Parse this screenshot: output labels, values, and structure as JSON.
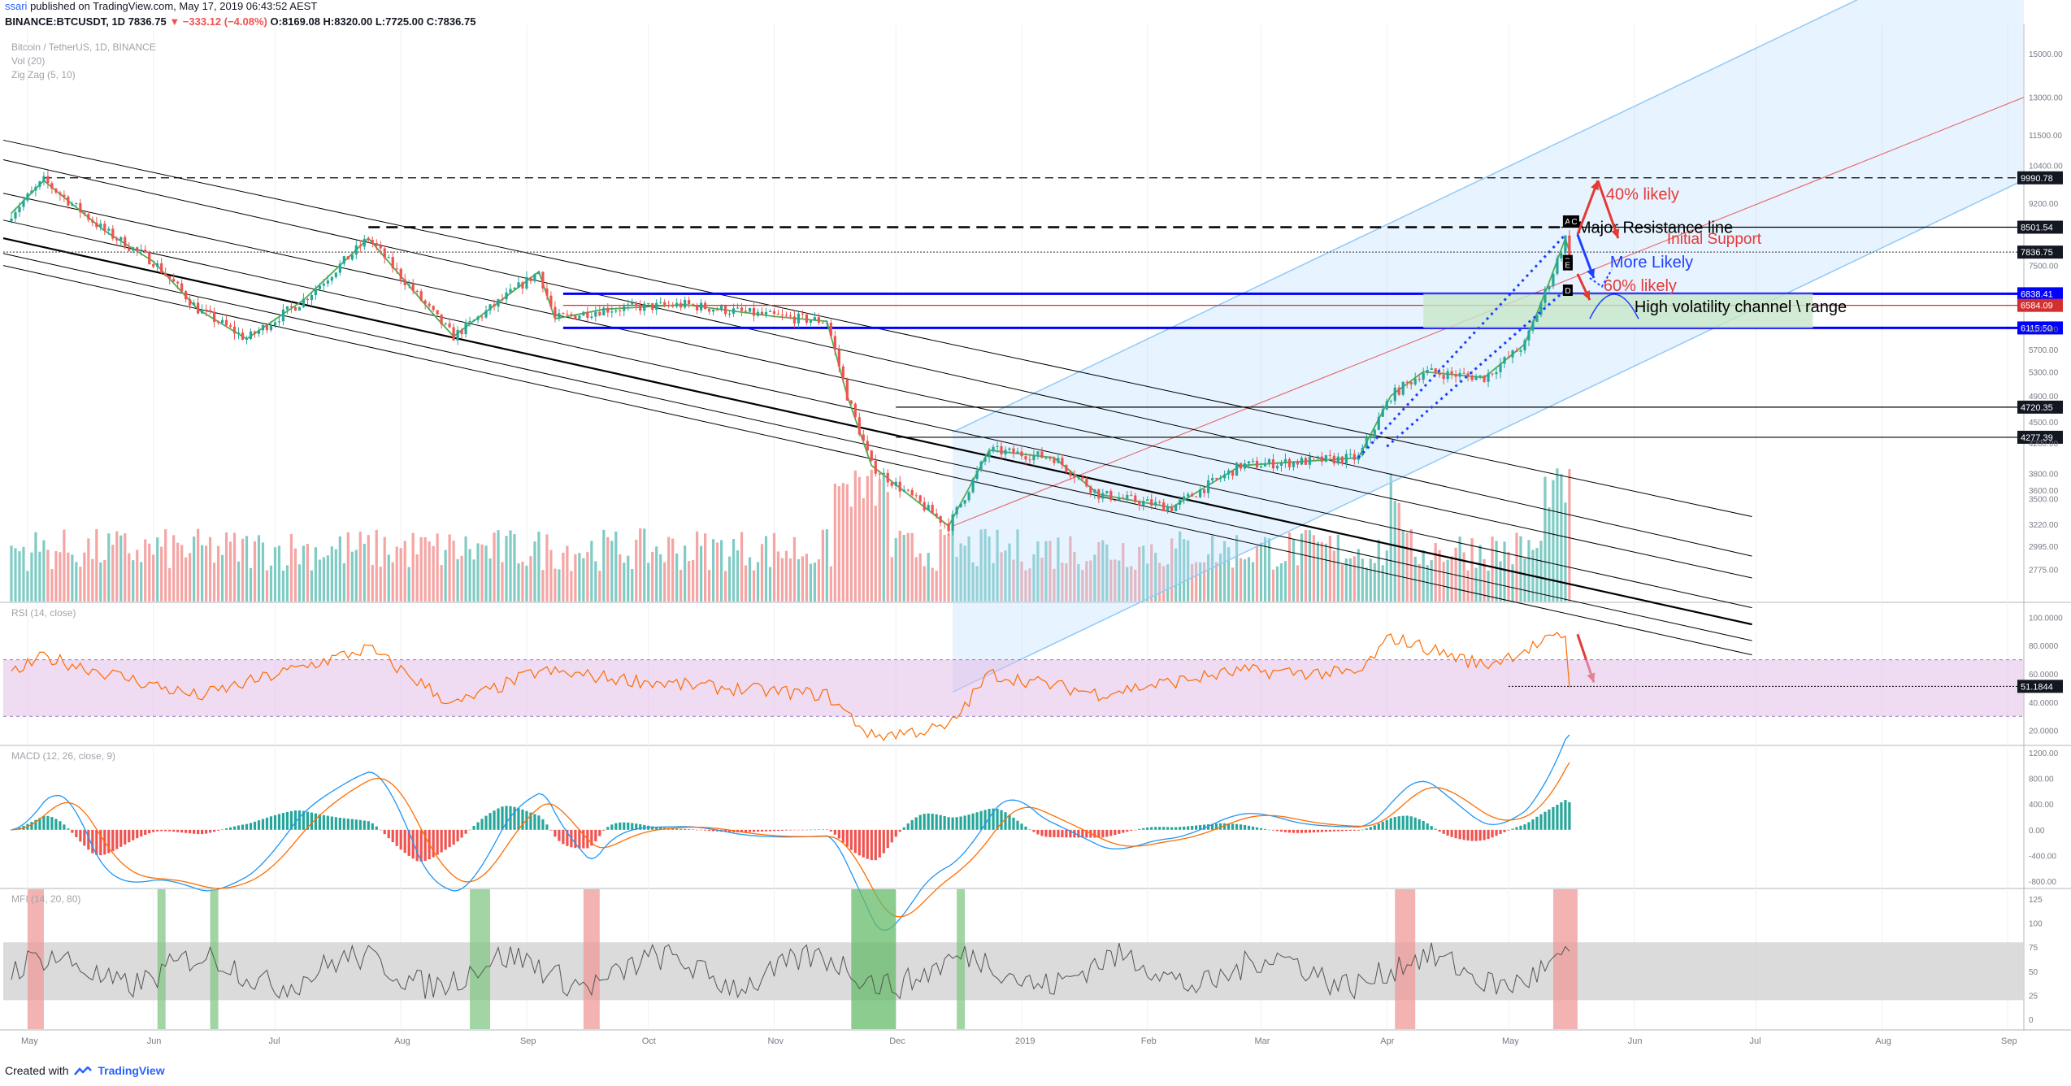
{
  "header": {
    "user": "ssari",
    "published": "published on TradingView.com, May 17, 2019 06:43:52 AEST",
    "ticker": "BINANCE:BTCUSDT, 1D",
    "last": "7836.75",
    "change": "▼ −333.12 (−4.08%)",
    "ohlc": "O:8169.08 H:8320.00 L:7725.00 C:7836.75"
  },
  "footer": {
    "created_with": "Created with",
    "brand": "TradingView"
  },
  "colors": {
    "up": "#26a69a",
    "down": "#ef5350",
    "vol_up": "#80cbc4",
    "vol_down": "#f4a5a4",
    "zigzag": "#4caf50",
    "rsi_line": "#ff6d00",
    "rsi_band": "#e1bee7",
    "macd": "#2196f3",
    "signal": "#ff6d00",
    "mfi_line": "#555555",
    "channel": "#000000",
    "pitchfork": "#90caf9",
    "resistance": "#0000ff"
  },
  "chart_data": [
    {
      "type": "candlestick",
      "title": "Bitcoin / TetherUS, 1D, BINANCE",
      "indicators": [
        "Vol (20)",
        "Zig Zag (5, 10)"
      ],
      "x_labels": [
        "May",
        "Jun",
        "Jul",
        "Aug",
        "Sep",
        "Oct",
        "Nov",
        "Dec",
        "2019",
        "Feb",
        "Mar",
        "Apr",
        "May",
        "Jun",
        "Jul",
        "Aug",
        "Sep"
      ],
      "y_scale": "log",
      "ylim": [
        2500,
        16500
      ],
      "y_ticks": [
        "15000.00",
        "13000.00",
        "11500.00",
        "10400.00",
        "9200.00",
        "7500.00",
        "6100.00",
        "5700.00",
        "5300.00",
        "4900.00",
        "4500.00",
        "4200.00",
        "3800.00",
        "3600.00",
        "3500.00",
        "3220.00",
        "2995.00",
        "2775.00"
      ],
      "price_lines": [
        {
          "label": "9990.78",
          "value": 9990.78,
          "style": "dashed"
        },
        {
          "label": "8501.54",
          "value": 8501.54,
          "style": "solid"
        },
        {
          "label": "7836.75",
          "value": 7836.75,
          "style": "dotted"
        },
        {
          "label": "6838.41",
          "value": 6838.41,
          "style": "blue"
        },
        {
          "label": "6584.09",
          "value": 6584.09,
          "style": "red"
        },
        {
          "label": "6115.50",
          "value": 6115.5,
          "style": "blue"
        },
        {
          "label": "4720.35",
          "value": 4720.35,
          "style": "solid"
        },
        {
          "label": "4277.39",
          "value": 4277.39,
          "style": "solid"
        }
      ],
      "price_path": [
        [
          "2018-04-27",
          8900
        ],
        [
          "2018-05-05",
          9900
        ],
        [
          "2018-05-20",
          8400
        ],
        [
          "2018-06-01",
          7600
        ],
        [
          "2018-06-12",
          6500
        ],
        [
          "2018-06-24",
          5900
        ],
        [
          "2018-07-08",
          6700
        ],
        [
          "2018-07-24",
          8200
        ],
        [
          "2018-08-10",
          6300
        ],
        [
          "2018-08-14",
          5950
        ],
        [
          "2018-09-04",
          7350
        ],
        [
          "2018-09-08",
          6300
        ],
        [
          "2018-09-20",
          6500
        ],
        [
          "2018-10-10",
          6600
        ],
        [
          "2018-11-01",
          6350
        ],
        [
          "2018-11-14",
          6250
        ],
        [
          "2018-11-19",
          4900
        ],
        [
          "2018-11-25",
          3900
        ],
        [
          "2018-12-14",
          3200
        ],
        [
          "2018-12-24",
          4100
        ],
        [
          "2019-01-09",
          4000
        ],
        [
          "2019-01-20",
          3550
        ],
        [
          "2019-02-07",
          3400
        ],
        [
          "2019-02-24",
          3900
        ],
        [
          "2019-03-25",
          4000
        ],
        [
          "2019-04-02",
          4900
        ],
        [
          "2019-04-10",
          5300
        ],
        [
          "2019-04-25",
          5200
        ],
        [
          "2019-05-05",
          5800
        ],
        [
          "2019-05-11",
          7100
        ],
        [
          "2019-05-15",
          8200
        ],
        [
          "2019-05-16",
          7836.75
        ]
      ],
      "annotations": [
        "40% likely",
        "Major Resistance line",
        "Initial Support",
        "More Likely",
        "60% likely",
        "High volatility channel \\ range"
      ],
      "pivot_labels": [
        "A",
        "C",
        "B",
        "D",
        "E"
      ]
    },
    {
      "type": "line",
      "title": "RSI (14, close)",
      "ylim": [
        10,
        110
      ],
      "y_ticks": [
        "100.0000",
        "80.0000",
        "60.0000",
        "40.0000",
        "20.0000"
      ],
      "last_value_label": "51.1844",
      "band": [
        30,
        70
      ],
      "path": [
        [
          "2018-04-27",
          60
        ],
        [
          "2018-05-05",
          72
        ],
        [
          "2018-06-12",
          44
        ],
        [
          "2018-07-24",
          78
        ],
        [
          "2018-08-14",
          38
        ],
        [
          "2018-09-04",
          62
        ],
        [
          "2018-10-10",
          52
        ],
        [
          "2018-11-14",
          45
        ],
        [
          "2018-11-25",
          16
        ],
        [
          "2018-12-14",
          22
        ],
        [
          "2018-12-24",
          60
        ],
        [
          "2019-01-20",
          46
        ],
        [
          "2019-02-24",
          62
        ],
        [
          "2019-03-25",
          60
        ],
        [
          "2019-04-02",
          86
        ],
        [
          "2019-04-25",
          66
        ],
        [
          "2019-05-15",
          88
        ],
        [
          "2019-05-16",
          51.18
        ]
      ]
    },
    {
      "type": "line",
      "title": "MACD (12, 26, close, 9)",
      "ylim": [
        -900,
        1300
      ],
      "y_ticks": [
        "1200.00",
        "800.00",
        "400.00",
        "0.00",
        "-400.00",
        "-800.00"
      ]
    },
    {
      "type": "line",
      "title": "MFI (14, 20, 80)",
      "ylim": [
        -10,
        135
      ],
      "y_ticks": [
        "125",
        "100",
        "75",
        "50",
        "25",
        "0"
      ],
      "band": [
        20,
        80
      ]
    }
  ]
}
